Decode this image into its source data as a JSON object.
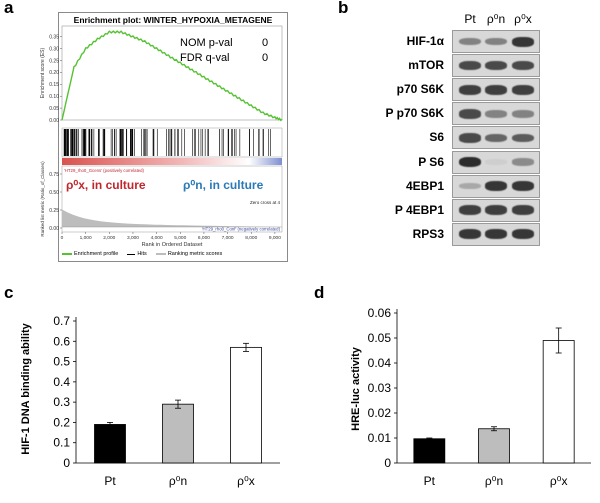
{
  "panel_a": {
    "letter": "a",
    "title": "Enrichment plot: WINTER_HYPOXIA_METAGENE",
    "stats": [
      {
        "label": "NOM p-val",
        "value": "0"
      },
      {
        "label": "FDR q-val",
        "value": "0"
      }
    ],
    "es_ylabel": "Enrichment score (ES)",
    "es_ticks": [
      "0.35",
      "0.30",
      "0.25",
      "0.20",
      "0.15",
      "0.10",
      "0.05",
      "0.00"
    ],
    "pos_label": "'HT29_rho0_Gcens' (positively correlated)",
    "neg_label": "'HT29_rho0_Conf' (negatively correlated)",
    "annot_left": "ρ⁰x, in culture",
    "annot_right": "ρ⁰n, in culture",
    "zero_cross": "Zero cross at 4",
    "metric_ylabel": "Ranked list metric (Ratio_of_Classes)",
    "metric_ticks": [
      "0.75",
      "0.50",
      "0.25",
      "0.00"
    ],
    "x_ticks": [
      "0",
      "1,000",
      "2,000",
      "3,000",
      "4,000",
      "5,000",
      "6,000",
      "7,000",
      "8,000",
      "9,000"
    ],
    "x_label": "Rank in Ordered Dataset",
    "legend": [
      "Enrichment profile",
      "Hits",
      "Ranking metric scores"
    ],
    "colors": {
      "profile": "#55c232",
      "hits": "#000000",
      "metric": "#bdbdbd",
      "red": "#c0272d",
      "blue": "#2a7ab8"
    }
  },
  "panel_b": {
    "letter": "b",
    "lanes": [
      "Pt",
      "ρ⁰n",
      "ρ⁰x"
    ],
    "proteins": [
      "HIF-1α",
      "mTOR",
      "p70 S6K",
      "P p70 S6K",
      "S6",
      "P S6",
      "4EBP1",
      "P 4EBP1",
      "RPS3"
    ],
    "band_intensity": [
      [
        0.45,
        0.45,
        0.85
      ],
      [
        0.75,
        0.75,
        0.75
      ],
      [
        0.8,
        0.8,
        0.8
      ],
      [
        0.75,
        0.45,
        0.45
      ],
      [
        0.75,
        0.6,
        0.65
      ],
      [
        0.9,
        0.05,
        0.4
      ],
      [
        0.25,
        0.85,
        0.85
      ],
      [
        0.8,
        0.8,
        0.8
      ],
      [
        0.85,
        0.85,
        0.85
      ]
    ]
  },
  "panel_c": {
    "letter": "c",
    "ylabel": "HIF-1 DNA binding ability",
    "y_ticks": [
      "0",
      "0.1",
      "0.2",
      "0.3",
      "0.4",
      "0.5",
      "0.6",
      "0.7"
    ],
    "categories": [
      "Pt",
      "ρ⁰n",
      "ρ⁰x"
    ],
    "colors": [
      "#000000",
      "#bdbdbd",
      "#ffffff"
    ]
  },
  "panel_d": {
    "letter": "d",
    "ylabel": "HRE-luc activity",
    "y_ticks": [
      "0",
      "0.01",
      "0.02",
      "0.03",
      "0.04",
      "0.05",
      "0.06"
    ],
    "categories": [
      "Pt",
      "ρ⁰n",
      "ρ⁰x"
    ],
    "colors": [
      "#000000",
      "#bdbdbd",
      "#ffffff"
    ]
  },
  "chart_data": [
    {
      "type": "bar",
      "title": "",
      "categories": [
        "Pt",
        "ρ⁰n",
        "ρ⁰x"
      ],
      "values": [
        0.19,
        0.29,
        0.57
      ],
      "errors": [
        0.01,
        0.02,
        0.02
      ],
      "xlabel": "",
      "ylabel": "HIF-1 DNA binding ability",
      "ylim": [
        0,
        0.7
      ]
    },
    {
      "type": "bar",
      "title": "",
      "categories": [
        "Pt",
        "ρ⁰n",
        "ρ⁰x"
      ],
      "values": [
        0.0097,
        0.0137,
        0.049
      ],
      "errors": [
        0.0003,
        0.0008,
        0.005
      ],
      "xlabel": "",
      "ylabel": "HRE-luc activity",
      "ylim": [
        0,
        0.06
      ]
    },
    {
      "type": "line",
      "title": "Enrichment plot: WINTER_HYPOXIA_METAGENE",
      "x": [
        0,
        500,
        1000,
        1500,
        2000,
        2500,
        3000,
        3500,
        4000,
        4500,
        5000,
        5500,
        6000,
        6500,
        7000,
        7500,
        8000,
        8500,
        9000,
        9300
      ],
      "values": [
        0.0,
        0.22,
        0.3,
        0.34,
        0.37,
        0.37,
        0.35,
        0.33,
        0.3,
        0.27,
        0.24,
        0.21,
        0.18,
        0.15,
        0.12,
        0.09,
        0.06,
        0.03,
        0.01,
        0.0
      ],
      "xlabel": "Rank in Ordered Dataset",
      "ylabel": "Enrichment score (ES)",
      "ylim": [
        0,
        0.37
      ],
      "xlim": [
        0,
        9300
      ]
    }
  ]
}
